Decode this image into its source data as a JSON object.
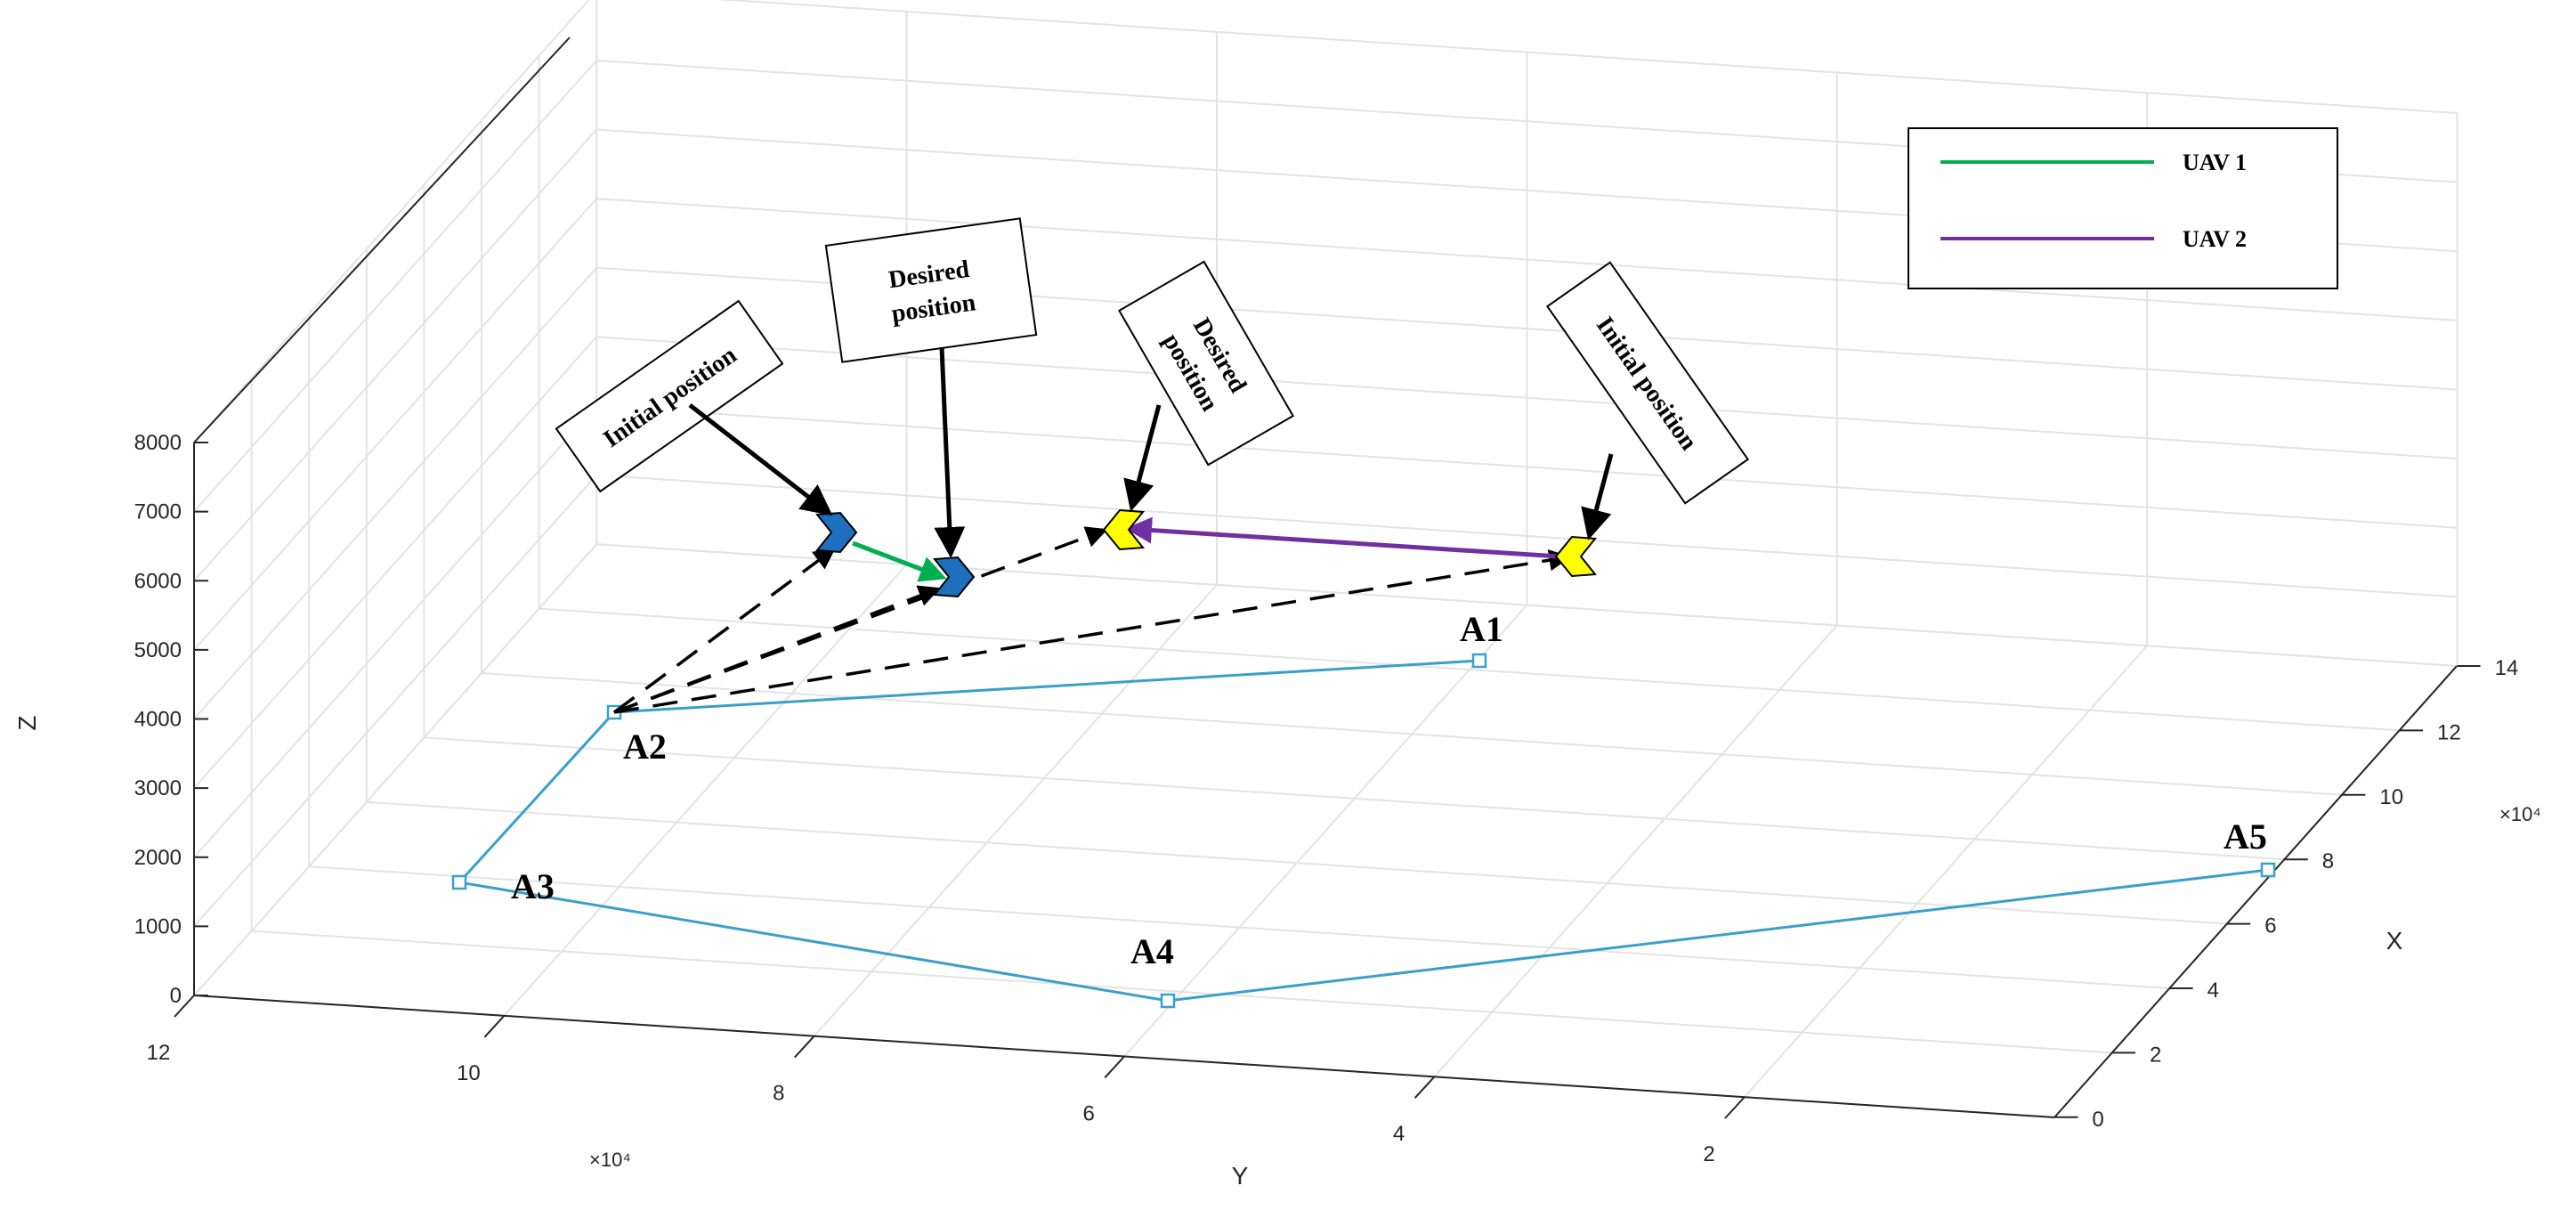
{
  "chart_data": {
    "type": "line",
    "subtype": "3d-trajectory",
    "xlabel": "X",
    "ylabel": "Y",
    "zlabel": "Z",
    "x_multiplier": "×10⁴",
    "y_multiplier": "×10⁴",
    "xlim": [
      0,
      14
    ],
    "ylim": [
      0,
      12
    ],
    "zlim": [
      0,
      8000
    ],
    "x_ticks": [
      "0",
      "2",
      "4",
      "6",
      "8",
      "10",
      "12",
      "14"
    ],
    "y_ticks": [
      "2",
      "4",
      "6",
      "8",
      "10",
      "12"
    ],
    "z_ticks": [
      "0",
      "1000",
      "2000",
      "3000",
      "4000",
      "5000",
      "6000",
      "7000",
      "8000"
    ],
    "grid": true,
    "legend_position": "top-right",
    "route": {
      "color": "#3a9fc9",
      "waypoints": [
        {
          "name": "A1",
          "x": 13.0,
          "y": 4.5,
          "z": 3000
        },
        {
          "name": "A2",
          "x": 9.5,
          "y": 11.0,
          "z": 4000
        },
        {
          "name": "A3",
          "x": 3.6,
          "y": 11.0,
          "z": 4000
        },
        {
          "name": "A4",
          "x": 1.2,
          "y": 6.0,
          "z": 2000
        },
        {
          "name": "A5",
          "x": 8.0,
          "y": 0.2,
          "z": 1000
        }
      ]
    },
    "series": [
      {
        "name": "UAV 1",
        "color": "#00b050",
        "marker_color": "#1f6fbf",
        "start_label": "Initial position",
        "end_label": "Desired position",
        "start": {
          "x": 10.5,
          "y": 9.1,
          "z": 6650
        },
        "end": {
          "x": 10.5,
          "y": 8.5,
          "z": 6400
        }
      },
      {
        "name": "UAV 2",
        "color": "#7030a0",
        "marker_color": "#ffff00",
        "start_label": "Initial position",
        "end_label": "Desired position",
        "start": {
          "x": 13.5,
          "y": 4.8,
          "z": 5800
        },
        "end": {
          "x": 13.5,
          "y": 7.6,
          "z": 6500
        }
      }
    ]
  }
}
